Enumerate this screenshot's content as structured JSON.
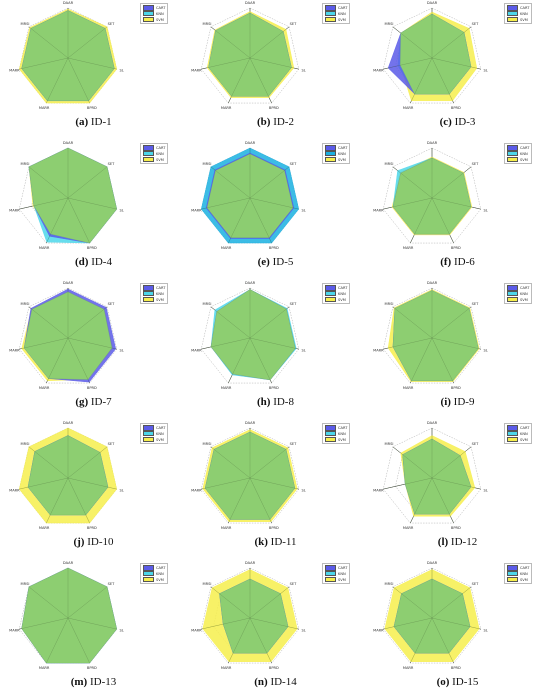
{
  "chart_data": [
    {
      "type": "radar",
      "panel_label": "a",
      "title": "ID-1",
      "axes": [
        "DAAR",
        "SET",
        "SL",
        "BPRD",
        "MARR",
        "MARR",
        "MRSI"
      ],
      "rmax": 1,
      "series": [
        {
          "name": "CART",
          "color": "#5b5be8",
          "values": [
            0.95,
            0.95,
            0.95,
            0.95,
            0.95,
            0.95,
            0.95
          ]
        },
        {
          "name": "KNN",
          "color": "#4cd7ea",
          "values": [
            0.95,
            0.95,
            0.95,
            0.95,
            0.95,
            0.95,
            0.95
          ]
        },
        {
          "name": "SVM",
          "color": "#f6ef4c",
          "values": [
            0.98,
            1.0,
            1.0,
            1.0,
            1.0,
            1.0,
            0.98
          ]
        }
      ]
    },
    {
      "type": "radar",
      "panel_label": "b",
      "title": "ID-2",
      "axes": [
        "DAAR",
        "SET",
        "SL",
        "BPRD",
        "MARR",
        "MARR",
        "MRSI"
      ],
      "rmax": 1,
      "series": [
        {
          "name": "CART",
          "color": "#5b5be8",
          "values": [
            0.9,
            0.85,
            0.85,
            0.85,
            0.85,
            0.85,
            0.88
          ]
        },
        {
          "name": "KNN",
          "color": "#4cd7ea",
          "values": [
            0.9,
            0.85,
            0.85,
            0.85,
            0.85,
            0.85,
            0.88
          ]
        },
        {
          "name": "SVM",
          "color": "#f6ef4c",
          "values": [
            0.93,
            0.92,
            0.9,
            0.88,
            0.88,
            0.88,
            0.9
          ]
        }
      ]
    },
    {
      "type": "radar",
      "panel_label": "c",
      "title": "ID-3",
      "axes": [
        "DAAR",
        "SET",
        "SL",
        "BPRD",
        "MARR",
        "MARR",
        "MRSI"
      ],
      "rmax": 1,
      "series": [
        {
          "name": "CART",
          "color": "#5b5be8",
          "values": [
            0.88,
            0.82,
            0.8,
            0.8,
            0.8,
            0.9,
            0.8
          ]
        },
        {
          "name": "KNN",
          "color": "#4cd7ea",
          "values": [
            0.88,
            0.82,
            0.8,
            0.8,
            0.8,
            0.7,
            0.8
          ]
        },
        {
          "name": "SVM",
          "color": "#f6ef4c",
          "values": [
            0.92,
            0.95,
            0.92,
            0.95,
            0.95,
            0.65,
            0.8
          ]
        }
      ]
    },
    {
      "type": "radar",
      "panel_label": "d",
      "title": "ID-4",
      "axes": [
        "DAAR",
        "SET",
        "SL",
        "BPRD",
        "MARR",
        "MARR",
        "MRSI"
      ],
      "rmax": 1,
      "series": [
        {
          "name": "CART",
          "color": "#5b5be8",
          "values": [
            1.0,
            1.0,
            1.0,
            1.0,
            0.85,
            0.7,
            1.0
          ]
        },
        {
          "name": "KNN",
          "color": "#4cd7ea",
          "values": [
            1.0,
            1.0,
            1.0,
            1.0,
            0.98,
            0.7,
            1.0
          ]
        },
        {
          "name": "SVM",
          "color": "#f6ef4c",
          "values": [
            1.0,
            1.0,
            1.0,
            1.0,
            0.8,
            0.72,
            1.0
          ]
        }
      ]
    },
    {
      "type": "radar",
      "panel_label": "e",
      "title": "ID-5",
      "axes": [
        "DAAR",
        "SET",
        "SL",
        "BPRD",
        "MARR",
        "MARR",
        "MRSI"
      ],
      "rmax": 1,
      "series": [
        {
          "name": "CART",
          "color": "#5b5be8",
          "values": [
            0.9,
            0.9,
            0.9,
            0.9,
            0.9,
            0.9,
            0.9
          ]
        },
        {
          "name": "KNN",
          "color": "#1ab0e0",
          "values": [
            1.0,
            1.0,
            1.0,
            1.0,
            1.0,
            1.0,
            1.0
          ]
        },
        {
          "name": "SVM",
          "color": "#f6ef4c",
          "values": [
            0.88,
            0.88,
            0.88,
            0.88,
            0.88,
            0.88,
            0.88
          ]
        }
      ]
    },
    {
      "type": "radar",
      "panel_label": "f",
      "title": "ID-6",
      "axes": [
        "DAAR",
        "SET",
        "SL",
        "BPRD",
        "MARR",
        "MARR",
        "MRSI"
      ],
      "rmax": 1,
      "series": [
        {
          "name": "CART",
          "color": "#5b5be8",
          "values": [
            0.8,
            0.8,
            0.8,
            0.8,
            0.8,
            0.8,
            0.8
          ]
        },
        {
          "name": "KNN",
          "color": "#4cd7ea",
          "values": [
            0.8,
            0.8,
            0.8,
            0.8,
            0.8,
            0.8,
            0.88
          ]
        },
        {
          "name": "SVM",
          "color": "#f6ef4c",
          "values": [
            0.82,
            0.82,
            0.82,
            0.82,
            0.82,
            0.82,
            0.82
          ]
        }
      ]
    },
    {
      "type": "radar",
      "panel_label": "g",
      "title": "ID-7",
      "axes": [
        "DAAR",
        "SET",
        "SL",
        "BPRD",
        "MARR",
        "MARR",
        "MRSI"
      ],
      "rmax": 1,
      "series": [
        {
          "name": "CART",
          "color": "#5b5be8",
          "values": [
            0.98,
            0.98,
            0.98,
            0.98,
            0.9,
            0.9,
            0.95
          ]
        },
        {
          "name": "KNN",
          "color": "#4cd7ea",
          "values": [
            0.92,
            0.92,
            0.9,
            0.92,
            0.9,
            0.9,
            0.92
          ]
        },
        {
          "name": "SVM",
          "color": "#f6ef4c",
          "values": [
            0.93,
            0.93,
            0.92,
            0.92,
            0.95,
            0.95,
            0.93
          ]
        }
      ]
    },
    {
      "type": "radar",
      "panel_label": "h",
      "title": "ID-8",
      "axes": [
        "DAAR",
        "SET",
        "SL",
        "BPRD",
        "MARR",
        "MARR",
        "MRSI"
      ],
      "rmax": 1,
      "series": [
        {
          "name": "CART",
          "color": "#5b5be8",
          "values": [
            0.97,
            0.93,
            0.93,
            0.93,
            0.8,
            0.8,
            0.85
          ]
        },
        {
          "name": "KNN",
          "color": "#4cd7ea",
          "values": [
            0.97,
            0.95,
            0.95,
            0.93,
            0.82,
            0.8,
            0.9
          ]
        },
        {
          "name": "SVM",
          "color": "#f6ef4c",
          "values": [
            0.97,
            0.93,
            0.93,
            0.93,
            0.8,
            0.8,
            0.85
          ]
        }
      ]
    },
    {
      "type": "radar",
      "panel_label": "i",
      "title": "ID-9",
      "axes": [
        "DAAR",
        "SET",
        "SL",
        "BPRD",
        "MARR",
        "MARR",
        "MRSI"
      ],
      "rmax": 1,
      "series": [
        {
          "name": "CART",
          "color": "#5b5be8",
          "values": [
            0.95,
            0.95,
            0.95,
            0.95,
            0.95,
            0.8,
            0.95
          ]
        },
        {
          "name": "KNN",
          "color": "#4cd7ea",
          "values": [
            0.95,
            0.95,
            0.95,
            0.95,
            0.95,
            0.8,
            0.95
          ]
        },
        {
          "name": "SVM",
          "color": "#f6ef4c",
          "values": [
            0.97,
            0.97,
            0.97,
            0.97,
            0.97,
            0.9,
            0.97
          ]
        }
      ]
    },
    {
      "type": "radar",
      "panel_label": "j",
      "title": "ID-10",
      "axes": [
        "DAAR",
        "SET",
        "SL",
        "BPRD",
        "MARR",
        "MARR",
        "MRSI"
      ],
      "rmax": 1,
      "series": [
        {
          "name": "CART",
          "color": "#5b5be8",
          "values": [
            0.85,
            0.82,
            0.82,
            0.82,
            0.82,
            0.82,
            0.85
          ]
        },
        {
          "name": "KNN",
          "color": "#4cd7ea",
          "values": [
            0.85,
            0.82,
            0.82,
            0.82,
            0.82,
            0.82,
            0.85
          ]
        },
        {
          "name": "SVM",
          "color": "#f6ef4c",
          "values": [
            1.0,
            1.0,
            1.0,
            1.0,
            1.0,
            1.0,
            1.0
          ]
        }
      ]
    },
    {
      "type": "radar",
      "panel_label": "k",
      "title": "ID-11",
      "axes": [
        "DAAR",
        "SET",
        "SL",
        "BPRD",
        "MARR",
        "MARR",
        "MRSI"
      ],
      "rmax": 1,
      "series": [
        {
          "name": "CART",
          "color": "#5b5be8",
          "values": [
            0.92,
            0.92,
            0.92,
            0.92,
            0.92,
            0.92,
            0.92
          ]
        },
        {
          "name": "KNN",
          "color": "#4cd7ea",
          "values": [
            0.92,
            0.92,
            0.92,
            0.92,
            0.92,
            0.92,
            0.92
          ]
        },
        {
          "name": "SVM",
          "color": "#f6ef4c",
          "values": [
            0.97,
            0.97,
            0.97,
            0.97,
            0.97,
            0.97,
            0.97
          ]
        }
      ]
    },
    {
      "type": "radar",
      "panel_label": "l",
      "title": "ID-12",
      "axes": [
        "DAAR",
        "SET",
        "SL",
        "BPRD",
        "MARR",
        "MARR",
        "MRSI"
      ],
      "rmax": 1,
      "series": [
        {
          "name": "CART",
          "color": "#5b5be8",
          "values": [
            0.78,
            0.72,
            0.8,
            0.8,
            0.8,
            0.55,
            0.75
          ]
        },
        {
          "name": "KNN",
          "color": "#4cd7ea",
          "values": [
            0.78,
            0.72,
            0.8,
            0.8,
            0.8,
            0.55,
            0.75
          ]
        },
        {
          "name": "SVM",
          "color": "#f6ef4c",
          "values": [
            0.85,
            0.85,
            0.88,
            0.85,
            0.85,
            0.55,
            0.8
          ]
        }
      ]
    },
    {
      "type": "radar",
      "panel_label": "m",
      "title": "ID-13",
      "axes": [
        "DAAR",
        "SET",
        "SL",
        "BPRD",
        "MARR",
        "MARR",
        "MRSI"
      ],
      "rmax": 1,
      "series": [
        {
          "name": "CART",
          "color": "#5b5be8",
          "values": [
            1.0,
            1.0,
            1.0,
            1.0,
            1.0,
            0.95,
            1.0
          ]
        },
        {
          "name": "KNN",
          "color": "#4cd7ea",
          "values": [
            1.0,
            1.0,
            1.0,
            1.0,
            1.0,
            0.95,
            1.0
          ]
        },
        {
          "name": "SVM",
          "color": "#f6ef4c",
          "values": [
            1.0,
            1.0,
            1.0,
            1.0,
            1.0,
            0.95,
            1.0
          ]
        }
      ]
    },
    {
      "type": "radar",
      "panel_label": "n",
      "title": "ID-14",
      "axes": [
        "DAAR",
        "SET",
        "SL",
        "BPRD",
        "MARR",
        "MARR",
        "MRSI"
      ],
      "rmax": 1,
      "series": [
        {
          "name": "CART",
          "color": "#5b5be8",
          "values": [
            0.78,
            0.78,
            0.78,
            0.78,
            0.78,
            0.55,
            0.78
          ]
        },
        {
          "name": "KNN",
          "color": "#4cd7ea",
          "values": [
            0.78,
            0.78,
            0.78,
            0.78,
            0.78,
            0.55,
            0.78
          ]
        },
        {
          "name": "SVM",
          "color": "#f6ef4c",
          "values": [
            0.97,
            0.97,
            0.97,
            0.97,
            0.97,
            0.97,
            0.97
          ]
        }
      ]
    },
    {
      "type": "radar",
      "panel_label": "o",
      "title": "ID-15",
      "axes": [
        "DAAR",
        "SET",
        "SL",
        "BPRD",
        "MARR",
        "MARR",
        "MRSI"
      ],
      "rmax": 1,
      "series": [
        {
          "name": "CART",
          "color": "#5b5be8",
          "values": [
            0.78,
            0.78,
            0.78,
            0.78,
            0.78,
            0.78,
            0.78
          ]
        },
        {
          "name": "KNN",
          "color": "#4cd7ea",
          "values": [
            0.78,
            0.78,
            0.78,
            0.78,
            0.78,
            0.78,
            0.78
          ]
        },
        {
          "name": "SVM",
          "color": "#f6ef4c",
          "values": [
            0.97,
            0.97,
            0.97,
            0.97,
            0.97,
            0.97,
            0.97
          ]
        }
      ]
    }
  ]
}
